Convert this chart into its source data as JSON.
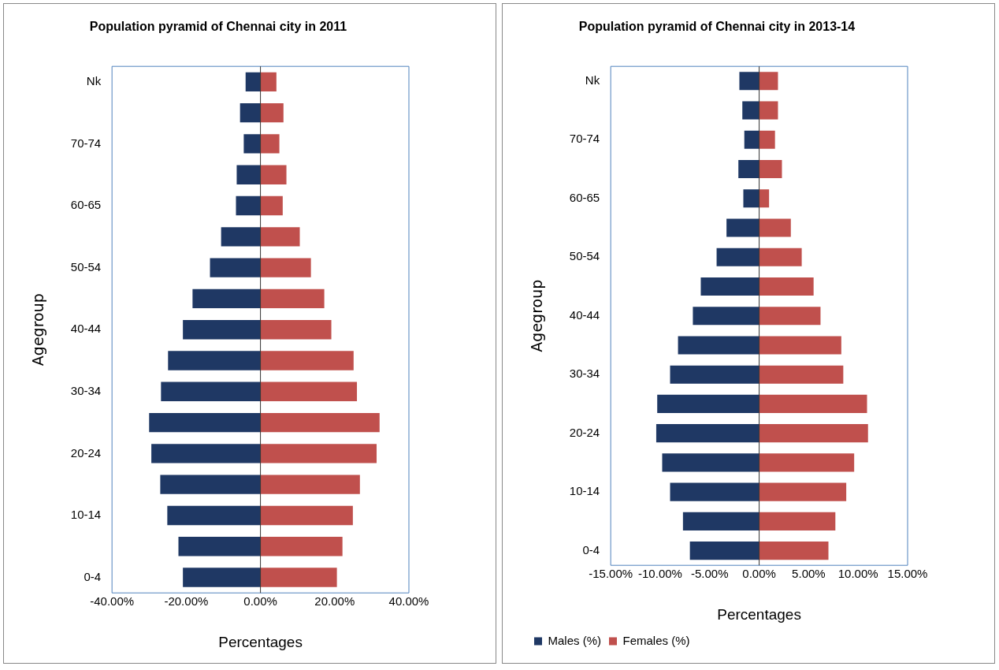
{
  "chart_data": [
    {
      "type": "bar",
      "orientation": "horizontal",
      "stacked": true,
      "title": "Population pyramid of Chennai city in 2011",
      "xlabel": "Percentages",
      "ylabel": "Agegroup",
      "categories": [
        "Nk",
        null,
        "70-74",
        null,
        "60-65",
        null,
        "50-54",
        null,
        "40-44",
        null,
        "30-34",
        null,
        "20-24",
        null,
        "10-14",
        null,
        "0-4"
      ],
      "series": [
        {
          "color": "#1f3864",
          "values": [
            -4.0,
            -5.5,
            -4.5,
            -6.4,
            -6.6,
            -10.6,
            -13.6,
            -18.3,
            -20.9,
            -24.9,
            -26.8,
            -30.0,
            -29.4,
            -27.0,
            -25.1,
            -22.1,
            -20.9
          ]
        },
        {
          "color": "#c0504d",
          "values": [
            4.3,
            6.2,
            5.1,
            7.0,
            6.0,
            10.6,
            13.6,
            17.2,
            19.1,
            25.1,
            26.0,
            32.1,
            31.3,
            26.8,
            24.9,
            22.1,
            20.6
          ]
        }
      ],
      "xlim": [
        -40,
        40
      ],
      "xticks": [
        {
          "value": -40,
          "label": "-40.00%"
        },
        {
          "value": -20,
          "label": "-20.00%"
        },
        {
          "value": 0,
          "label": "0.00%"
        },
        {
          "value": 20,
          "label": "20.00%"
        },
        {
          "value": 40,
          "label": "40.00%"
        }
      ],
      "ref_lines": [
        {
          "axis": "x",
          "value": 0,
          "color": "#333333"
        }
      ],
      "grid": false,
      "legend": false
    },
    {
      "type": "bar",
      "orientation": "horizontal",
      "stacked": true,
      "title": "Population pyramid of Chennai city in 2013-14",
      "xlabel": "Percentages",
      "ylabel": "Agegroup",
      "categories": [
        "Nk",
        null,
        "70-74",
        null,
        "60-65",
        null,
        "50-54",
        null,
        "40-44",
        null,
        "30-34",
        null,
        "20-24",
        null,
        "10-14",
        null,
        "0-4"
      ],
      "series": [
        {
          "name": "Males (%)",
          "color": "#1f3864",
          "values": [
            -2.0,
            -1.7,
            -1.5,
            -2.1,
            -1.6,
            -3.3,
            -4.3,
            -5.9,
            -6.7,
            -8.2,
            -9.0,
            -10.3,
            -10.4,
            -9.8,
            -9.0,
            -7.7,
            -7.0
          ]
        },
        {
          "name": "Females (%)",
          "color": "#c0504d",
          "values": [
            1.9,
            1.9,
            1.6,
            2.3,
            1.0,
            3.2,
            4.3,
            5.5,
            6.2,
            8.3,
            8.5,
            10.9,
            11.0,
            9.6,
            8.8,
            7.7,
            7.0
          ]
        }
      ],
      "xlim": [
        -15,
        15
      ],
      "xticks": [
        {
          "value": -15,
          "label": "-15.00%"
        },
        {
          "value": -10,
          "label": "-10.00%"
        },
        {
          "value": -5,
          "label": "-5.00%"
        },
        {
          "value": 0,
          "label": "0.00%"
        },
        {
          "value": 5,
          "label": "5.00%"
        },
        {
          "value": 10,
          "label": "10.00%"
        },
        {
          "value": 15,
          "label": "15.00%"
        }
      ],
      "ref_lines": [
        {
          "axis": "x",
          "value": 0,
          "color": "#333333"
        }
      ],
      "grid": false,
      "legend": "bottom left"
    }
  ]
}
